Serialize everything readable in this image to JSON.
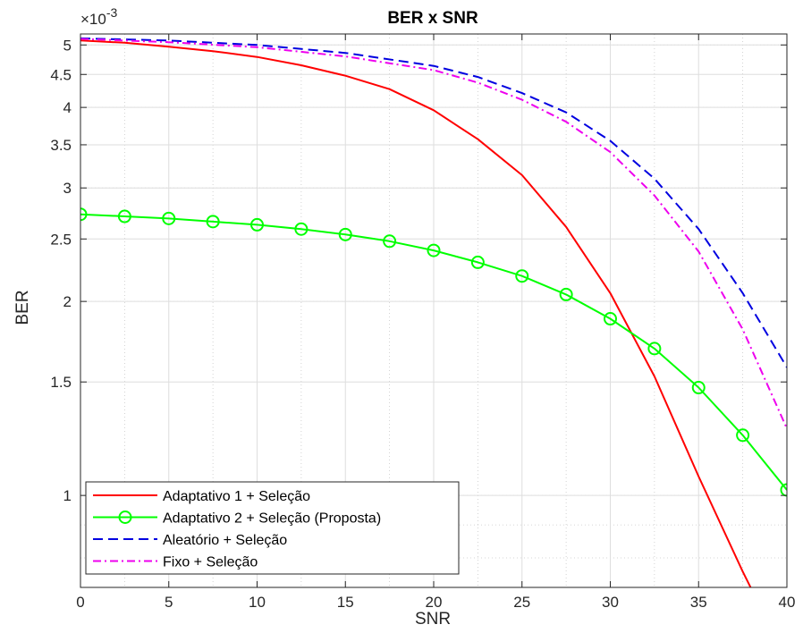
{
  "chart_data": {
    "type": "line",
    "title": "BER x SNR",
    "xlabel": "SNR",
    "ylabel": "BER",
    "xlim": [
      0,
      40
    ],
    "ylim": [
      0.00072,
      0.0052
    ],
    "yscale": "log",
    "y_multiplier_label": "×10",
    "y_multiplier_exponent": "-3",
    "grid": true,
    "minor_grid": true,
    "legend_position": "bottom-left",
    "x_ticks": [
      0,
      5,
      10,
      15,
      20,
      25,
      30,
      35,
      40
    ],
    "x_tick_labels": [
      "0",
      "5",
      "10",
      "15",
      "20",
      "25",
      "30",
      "35",
      "40"
    ],
    "y_ticks": [
      0.001,
      0.0015,
      0.002,
      0.0025,
      0.003,
      0.0035,
      0.004,
      0.0045,
      0.005
    ],
    "y_tick_labels": [
      "1",
      "1.5",
      "2",
      "2.5",
      "3",
      "3.5",
      "4",
      "4.5",
      "5"
    ],
    "series": [
      {
        "name": "Adaptativo 1 + Seleção",
        "color": "#ff0000",
        "style": "solid",
        "marker": "none",
        "x": [
          0,
          2.5,
          5,
          7.5,
          10,
          12.5,
          15,
          17.5,
          20,
          22.5,
          25,
          27.5,
          30,
          32.5,
          35,
          37.5,
          38
        ],
        "y": [
          0.00508,
          0.00504,
          0.00497,
          0.00489,
          0.00479,
          0.00465,
          0.00448,
          0.00427,
          0.00396,
          0.00357,
          0.00314,
          0.00261,
          0.00206,
          0.00153,
          0.00107,
          0.000762,
          0.000715
        ]
      },
      {
        "name": "Adaptativo 2 + Seleção (Proposta)",
        "color": "#00ff00",
        "style": "solid",
        "marker": "circle",
        "x": [
          0,
          2.5,
          5,
          7.5,
          10,
          12.5,
          15,
          17.5,
          20,
          22.5,
          25,
          27.5,
          30,
          32.5,
          35,
          37.5,
          40
        ],
        "y": [
          0.00273,
          0.00271,
          0.00269,
          0.00266,
          0.00263,
          0.00259,
          0.00254,
          0.00248,
          0.0024,
          0.0023,
          0.00219,
          0.00205,
          0.00188,
          0.00169,
          0.00147,
          0.00124,
          0.00102
        ]
      },
      {
        "name": "Aleatório + Seleção",
        "color": "#0000e0",
        "style": "dashed",
        "marker": "none",
        "x": [
          0,
          5,
          10,
          15,
          20,
          22.5,
          25,
          27.5,
          30,
          32.5,
          35,
          37.5,
          40
        ],
        "y": [
          0.00512,
          0.00508,
          0.005,
          0.00486,
          0.00464,
          0.00446,
          0.00421,
          0.00393,
          0.00355,
          0.0031,
          0.00259,
          0.00206,
          0.00158
        ]
      },
      {
        "name": "Fixo + Seleção",
        "color": "#ee00ee",
        "style": "dashdot",
        "marker": "none",
        "x": [
          0,
          5,
          10,
          15,
          20,
          22.5,
          25,
          27.5,
          30,
          32.5,
          35,
          37.5,
          40
        ],
        "y": [
          0.00511,
          0.00505,
          0.00496,
          0.0048,
          0.00457,
          0.00437,
          0.00411,
          0.0038,
          0.00341,
          0.00292,
          0.00239,
          0.00181,
          0.00127
        ]
      }
    ]
  }
}
